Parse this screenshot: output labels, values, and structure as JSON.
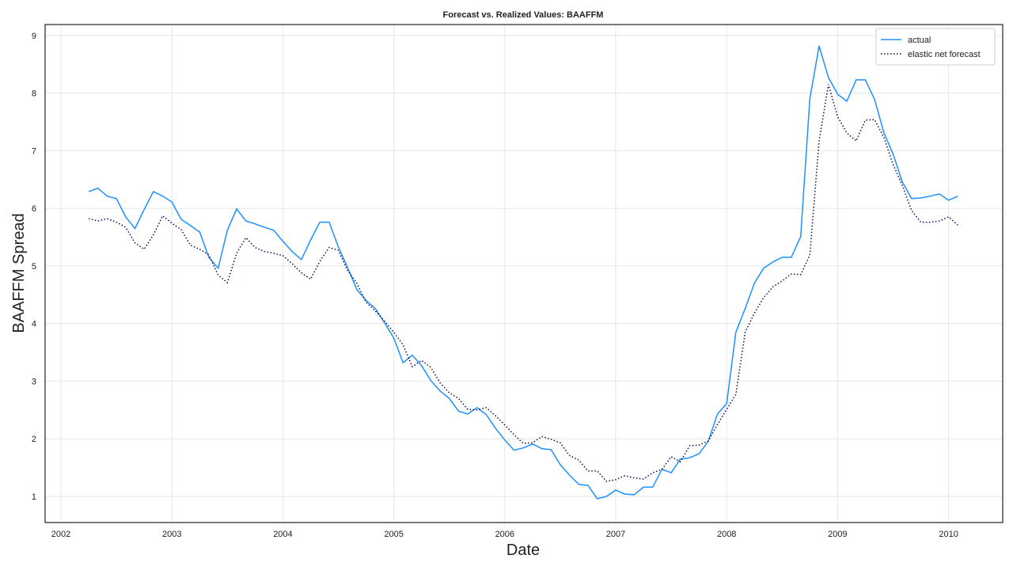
{
  "chart_data": {
    "type": "line",
    "title": "Forecast vs. Realized Values: BAAFFM",
    "x_label": "Date",
    "y_label": "BAAFFM Spread",
    "x": [
      2002.25,
      2002.333,
      2002.417,
      2002.5,
      2002.583,
      2002.667,
      2002.75,
      2002.833,
      2002.917,
      2003.0,
      2003.083,
      2003.167,
      2003.25,
      2003.333,
      2003.417,
      2003.5,
      2003.583,
      2003.667,
      2003.75,
      2003.833,
      2003.917,
      2004.0,
      2004.083,
      2004.167,
      2004.25,
      2004.333,
      2004.417,
      2004.5,
      2004.583,
      2004.667,
      2004.75,
      2004.833,
      2004.917,
      2005.0,
      2005.083,
      2005.167,
      2005.25,
      2005.333,
      2005.417,
      2005.5,
      2005.583,
      2005.667,
      2005.75,
      2005.833,
      2005.917,
      2006.0,
      2006.083,
      2006.167,
      2006.25,
      2006.333,
      2006.417,
      2006.5,
      2006.583,
      2006.667,
      2006.75,
      2006.833,
      2006.917,
      2007.0,
      2007.083,
      2007.167,
      2007.25,
      2007.333,
      2007.417,
      2007.5,
      2007.583,
      2007.667,
      2007.75,
      2007.833,
      2007.917,
      2008.0,
      2008.083,
      2008.167,
      2008.25,
      2008.333,
      2008.417,
      2008.5,
      2008.583,
      2008.667,
      2008.75,
      2008.833,
      2008.917,
      2009.0,
      2009.083,
      2009.167,
      2009.25,
      2009.333,
      2009.417,
      2009.5,
      2009.583,
      2009.667,
      2009.75,
      2009.833,
      2009.917,
      2010.0,
      2010.083
    ],
    "series": [
      {
        "name": "actual",
        "color": "#1e90ff",
        "style": "solid",
        "values": [
          6.29,
          6.35,
          6.21,
          6.17,
          5.85,
          5.65,
          5.98,
          6.29,
          6.21,
          6.11,
          5.81,
          5.7,
          5.59,
          5.15,
          4.96,
          5.62,
          5.99,
          5.78,
          5.73,
          5.67,
          5.62,
          5.43,
          5.25,
          5.11,
          5.45,
          5.76,
          5.76,
          5.33,
          4.97,
          4.59,
          4.4,
          4.26,
          4.01,
          3.75,
          3.32,
          3.45,
          3.27,
          3.01,
          2.83,
          2.7,
          2.48,
          2.43,
          2.54,
          2.42,
          2.18,
          1.98,
          1.8,
          1.84,
          1.91,
          1.83,
          1.81,
          1.55,
          1.37,
          1.21,
          1.19,
          0.96,
          1.0,
          1.11,
          1.04,
          1.03,
          1.16,
          1.16,
          1.47,
          1.41,
          1.65,
          1.67,
          1.74,
          1.95,
          2.43,
          2.61,
          3.85,
          4.26,
          4.7,
          4.96,
          5.07,
          5.15,
          5.15,
          5.51,
          7.9,
          8.82,
          8.27,
          7.98,
          7.86,
          8.23,
          8.23,
          7.89,
          7.31,
          6.94,
          6.46,
          6.17,
          6.18,
          6.21,
          6.25,
          6.14,
          6.21
        ]
      },
      {
        "name": "elastic net forecast",
        "color": "#0a0a5a",
        "style": "dotted",
        "values": [
          5.82,
          5.78,
          5.82,
          5.76,
          5.67,
          5.4,
          5.29,
          5.54,
          5.87,
          5.74,
          5.63,
          5.36,
          5.29,
          5.19,
          4.84,
          4.71,
          5.22,
          5.49,
          5.32,
          5.25,
          5.22,
          5.18,
          5.04,
          4.88,
          4.77,
          5.08,
          5.32,
          5.27,
          4.92,
          4.7,
          4.37,
          4.22,
          4.04,
          3.85,
          3.63,
          3.25,
          3.36,
          3.24,
          2.97,
          2.8,
          2.7,
          2.51,
          2.5,
          2.54,
          2.4,
          2.24,
          2.07,
          1.92,
          1.93,
          2.04,
          1.99,
          1.93,
          1.71,
          1.63,
          1.44,
          1.44,
          1.26,
          1.29,
          1.36,
          1.32,
          1.3,
          1.41,
          1.47,
          1.69,
          1.6,
          1.88,
          1.89,
          1.96,
          2.25,
          2.51,
          2.77,
          3.85,
          4.18,
          4.45,
          4.64,
          4.74,
          4.86,
          4.85,
          5.19,
          7.17,
          8.15,
          7.59,
          7.31,
          7.17,
          7.53,
          7.54,
          7.23,
          6.76,
          6.4,
          5.96,
          5.76,
          5.76,
          5.78,
          5.85,
          5.71
        ]
      }
    ],
    "xlim": [
      2001.857,
      2010.488
    ],
    "xticks": [
      2002,
      2003,
      2004,
      2005,
      2006,
      2007,
      2008,
      2009,
      2010
    ],
    "ylim": [
      0.546,
      9.19
    ],
    "yticks": [
      1,
      2,
      3,
      4,
      5,
      6,
      7,
      8,
      9
    ],
    "grid": true,
    "legend": "upper right"
  }
}
